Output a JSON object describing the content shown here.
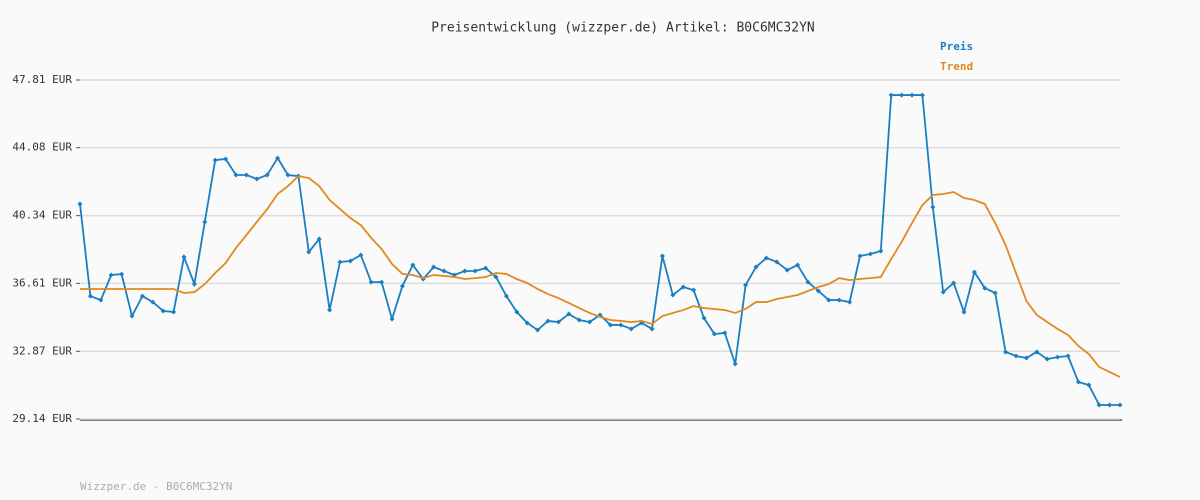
{
  "chart_data": {
    "type": "line",
    "title": "Preisentwicklung (wizzper.de) Artikel: B0C6MC32YN",
    "footer": "Wizzper.de - B0C6MC32YN",
    "ylim": [
      29.14,
      47.81
    ],
    "yticks": [
      {
        "value": 29.14,
        "label": "29.14 EUR"
      },
      {
        "value": 32.87,
        "label": "32.87 EUR"
      },
      {
        "value": 36.61,
        "label": "36.61 EUR"
      },
      {
        "value": 40.34,
        "label": "40.34 EUR"
      },
      {
        "value": 44.08,
        "label": "44.08 EUR"
      },
      {
        "value": 47.81,
        "label": "47.81 EUR"
      }
    ],
    "grid": true,
    "series": [
      {
        "name": "Preis",
        "color": "#1a7fc1",
        "markers": true,
        "values": [
          40.98,
          35.91,
          35.69,
          37.07,
          37.12,
          34.81,
          35.91,
          35.58,
          35.09,
          35.03,
          38.06,
          36.57,
          39.99,
          43.4,
          43.46,
          42.58,
          42.58,
          42.36,
          42.58,
          43.51,
          42.58,
          42.52,
          38.34,
          39.05,
          35.14,
          37.79,
          37.84,
          38.17,
          36.68,
          36.68,
          34.65,
          36.46,
          37.62,
          36.85,
          37.51,
          37.29,
          37.07,
          37.29,
          37.29,
          37.45,
          36.96,
          35.91,
          35.03,
          34.43,
          34.04,
          34.54,
          34.48,
          34.92,
          34.59,
          34.48,
          34.87,
          34.32,
          34.32,
          34.1,
          34.43,
          34.1,
          38.12,
          35.97,
          36.41,
          36.24,
          34.7,
          33.82,
          33.88,
          32.17,
          36.52,
          37.51,
          38.01,
          37.79,
          37.34,
          37.62,
          36.68,
          36.19,
          35.69,
          35.69,
          35.58,
          38.12,
          38.23,
          38.39,
          46.98,
          46.98,
          46.98,
          46.98,
          40.81,
          36.13,
          36.63,
          35.03,
          37.23,
          36.35,
          36.08,
          32.83,
          32.61,
          32.5,
          32.83,
          32.44,
          32.55,
          32.61,
          31.18,
          31.01,
          29.91,
          29.91,
          29.91
        ]
      },
      {
        "name": "Trend",
        "color": "#e08a1e",
        "markers": false,
        "values": [
          36.3,
          36.3,
          36.3,
          36.3,
          36.3,
          36.3,
          36.3,
          36.3,
          36.3,
          36.3,
          36.08,
          36.13,
          36.57,
          37.18,
          37.73,
          38.56,
          39.27,
          39.99,
          40.7,
          41.53,
          41.97,
          42.52,
          42.41,
          41.97,
          41.2,
          40.7,
          40.21,
          39.82,
          39.11,
          38.5,
          37.68,
          37.13,
          37.07,
          36.9,
          37.07,
          37.02,
          36.96,
          36.85,
          36.9,
          36.96,
          37.18,
          37.13,
          36.85,
          36.63,
          36.3,
          36.02,
          35.8,
          35.53,
          35.25,
          34.98,
          34.76,
          34.59,
          34.54,
          34.48,
          34.54,
          34.37,
          34.81,
          34.98,
          35.14,
          35.36,
          35.25,
          35.2,
          35.14,
          34.98,
          35.2,
          35.58,
          35.58,
          35.75,
          35.86,
          35.97,
          36.19,
          36.41,
          36.57,
          36.9,
          36.79,
          36.85,
          36.9,
          36.96,
          37.95,
          38.89,
          39.93,
          40.92,
          41.48,
          41.53,
          41.64,
          41.31,
          41.2,
          40.98,
          39.93,
          38.72,
          37.18,
          35.64,
          34.87,
          34.48,
          34.1,
          33.77,
          33.16,
          32.72,
          32.0,
          31.73,
          31.45
        ]
      }
    ]
  }
}
